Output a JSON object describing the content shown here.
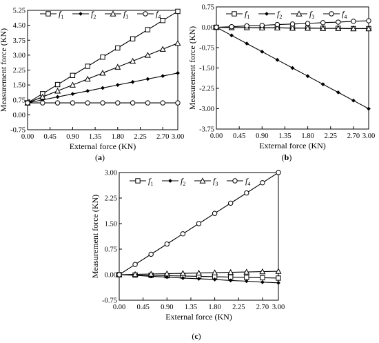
{
  "chart_data": [
    {
      "type": "line",
      "panel_label": "(a)",
      "xlabel": "External force  (KN)",
      "ylabel": "Measurement force  (KN)",
      "xlim": [
        0,
        3
      ],
      "ylim": [
        -0.75,
        5.25
      ],
      "xticks": [
        "0.00",
        "0.45",
        "0.90",
        "1.35",
        "1.80",
        "2.25",
        "2.70",
        "3.00"
      ],
      "yticks": [
        "-0.75",
        "0.00",
        "0.75",
        "1.50",
        "2.25",
        "3.00",
        "3.75",
        "4.50",
        "5.25"
      ],
      "grid": false,
      "legend_position": "top",
      "x": [
        0,
        0.3,
        0.6,
        0.9,
        1.2,
        1.5,
        1.8,
        2.1,
        2.4,
        2.7,
        3.0
      ],
      "series": [
        {
          "name": "f1",
          "marker": "square",
          "values": [
            0.6,
            1.06,
            1.52,
            1.98,
            2.44,
            2.9,
            3.36,
            3.82,
            4.28,
            4.74,
            5.2
          ]
        },
        {
          "name": "f2",
          "marker": "diamond",
          "values": [
            0.6,
            0.75,
            0.9,
            1.05,
            1.2,
            1.35,
            1.5,
            1.65,
            1.8,
            1.95,
            2.1
          ]
        },
        {
          "name": "f3",
          "marker": "triangle",
          "values": [
            0.6,
            0.9,
            1.2,
            1.5,
            1.8,
            2.1,
            2.4,
            2.7,
            3.0,
            3.3,
            3.6
          ]
        },
        {
          "name": "f4",
          "marker": "circle",
          "values": [
            0.6,
            0.6,
            0.6,
            0.6,
            0.6,
            0.6,
            0.6,
            0.6,
            0.6,
            0.6,
            0.6
          ]
        }
      ]
    },
    {
      "type": "line",
      "panel_label": "(b)",
      "xlabel": "External force  (KN)",
      "ylabel": "Measurement force  (KN)",
      "xlim": [
        0,
        3
      ],
      "ylim": [
        -3.75,
        0.75
      ],
      "xticks": [
        "0.00",
        "0.45",
        "0.90",
        "1.35",
        "1.80",
        "2.25",
        "2.70",
        "3.00"
      ],
      "yticks": [
        "-3.75",
        "-3.00",
        "-2.25",
        "-1.50",
        "-0.75",
        "0.00",
        "0.75"
      ],
      "grid": false,
      "legend_position": "top",
      "x": [
        0,
        0.3,
        0.6,
        0.9,
        1.2,
        1.5,
        1.8,
        2.1,
        2.4,
        2.7,
        3.0
      ],
      "series": [
        {
          "name": "f1",
          "marker": "square",
          "values": [
            0,
            -0.01,
            -0.01,
            -0.02,
            -0.02,
            -0.03,
            -0.03,
            -0.04,
            -0.04,
            -0.05,
            -0.05
          ]
        },
        {
          "name": "f2",
          "marker": "diamond",
          "values": [
            0,
            -0.3,
            -0.6,
            -0.9,
            -1.2,
            -1.5,
            -1.8,
            -2.1,
            -2.4,
            -2.7,
            -3.0
          ]
        },
        {
          "name": "f3",
          "marker": "triangle",
          "values": [
            0,
            -0.01,
            -0.01,
            -0.02,
            -0.02,
            -0.03,
            -0.03,
            -0.04,
            -0.04,
            -0.05,
            -0.05
          ]
        },
        {
          "name": "f4",
          "marker": "circle",
          "values": [
            0,
            0.02,
            0.05,
            0.07,
            0.1,
            0.12,
            0.14,
            0.17,
            0.19,
            0.22,
            0.24
          ]
        }
      ]
    },
    {
      "type": "line",
      "panel_label": "(c)",
      "xlabel": "External force  (KN)",
      "ylabel": "Measurement force  (KN)",
      "xlim": [
        0,
        3
      ],
      "ylim": [
        -0.75,
        3.0
      ],
      "xticks": [
        "0.00",
        "0.45",
        "0.90",
        "1.35",
        "1.80",
        "2.25",
        "2.70",
        "3.00"
      ],
      "yticks": [
        "-0.75",
        "0.00",
        "0.75",
        "1.50",
        "2.25",
        "3.00"
      ],
      "grid": false,
      "legend_position": "top",
      "x": [
        0,
        0.3,
        0.6,
        0.9,
        1.2,
        1.5,
        1.8,
        2.1,
        2.4,
        2.7,
        3.0
      ],
      "series": [
        {
          "name": "f1",
          "marker": "square",
          "values": [
            0,
            -0.01,
            -0.02,
            -0.03,
            -0.04,
            -0.05,
            -0.06,
            -0.07,
            -0.08,
            -0.09,
            -0.1
          ]
        },
        {
          "name": "f2",
          "marker": "diamond",
          "values": [
            0,
            -0.02,
            -0.05,
            -0.07,
            -0.1,
            -0.12,
            -0.14,
            -0.17,
            -0.19,
            -0.22,
            -0.24
          ]
        },
        {
          "name": "f3",
          "marker": "triangle",
          "values": [
            0,
            0.01,
            0.02,
            0.03,
            0.04,
            0.05,
            0.06,
            0.07,
            0.08,
            0.09,
            0.1
          ]
        },
        {
          "name": "f4",
          "marker": "circle",
          "values": [
            0,
            0.3,
            0.6,
            0.9,
            1.2,
            1.5,
            1.8,
            2.1,
            2.4,
            2.7,
            3.0
          ]
        }
      ]
    }
  ]
}
